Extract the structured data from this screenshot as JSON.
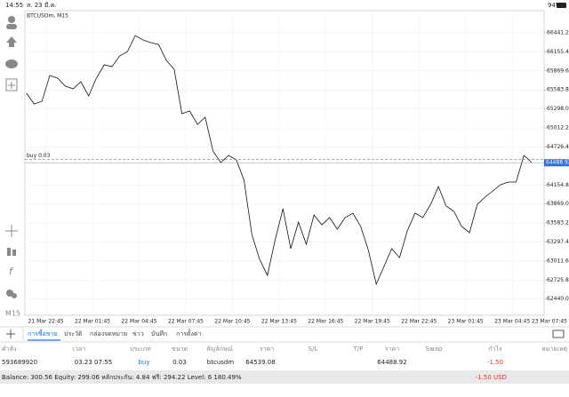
{
  "status_bar": {
    "time": "14:55",
    "date": "ส. 23 มี.ค.",
    "battery": "94%"
  },
  "chart": {
    "type": "line",
    "symbol_label": "BTCUSDm, M15",
    "timeframe": "M15",
    "color": "#111111",
    "values": [
      65533,
      65373,
      65413,
      65800,
      65760,
      65640,
      65600,
      65707,
      65493,
      65760,
      65960,
      65934,
      66094,
      66161,
      66401,
      66334,
      66294,
      66267,
      66027,
      65894,
      65226,
      65266,
      65066,
      65173,
      64665,
      64492,
      64599,
      64532,
      64225,
      63411,
      63037,
      62796,
      63330,
      63798,
      63197,
      63597,
      63264,
      63704,
      63557,
      63664,
      63491,
      63664,
      63731,
      63531,
      63170,
      62663,
      62930,
      63197,
      63063,
      63464,
      63731,
      63664,
      63864,
      64131,
      63838,
      63758,
      63531,
      63437,
      63864,
      63971,
      64065,
      64158,
      64198,
      64198,
      64599,
      64492
    ],
    "xlim": [
      -0.2,
      66.6
    ],
    "xticks": [
      {
        "value": 2.5,
        "label": "21 Mar 22:45"
      },
      {
        "value": 8.5,
        "label": "22 Mar 01:45"
      },
      {
        "value": 14.5,
        "label": "22 Mar 04:45"
      },
      {
        "value": 20.5,
        "label": "22 Mar 07:45"
      },
      {
        "value": 26.5,
        "label": "22 Mar 10:45"
      },
      {
        "value": 32.5,
        "label": "22 Mar 13:45"
      },
      {
        "value": 38.5,
        "label": "22 Mar 16:45"
      },
      {
        "value": 44.5,
        "label": "22 Mar 19:45"
      },
      {
        "value": 50.5,
        "label": "22 Mar 22:45"
      },
      {
        "value": 56.5,
        "label": "23 Mar 01:45"
      },
      {
        "value": 62.5,
        "label": "23 Mar 04:45"
      },
      {
        "value": 68.5,
        "label": "23 Mar 07:45"
      }
    ],
    "ylim": [
      62196,
      66775
    ],
    "yticks": [
      {
        "value": 66441.2,
        "label": "66441.20"
      },
      {
        "value": 66155.4,
        "label": "66155.40"
      },
      {
        "value": 65869.6,
        "label": "65869.60"
      },
      {
        "value": 65583.8,
        "label": "65583.80"
      },
      {
        "value": 65298,
        "label": "65298.00"
      },
      {
        "value": 65012.2,
        "label": "65012.20"
      },
      {
        "value": 64726.4,
        "label": "64726.40"
      },
      {
        "value": 64154.8,
        "label": "64154.80"
      },
      {
        "value": 63869,
        "label": "63869.00"
      },
      {
        "value": 63583.2,
        "label": "63583.20"
      },
      {
        "value": 63297.4,
        "label": "63297.40"
      },
      {
        "value": 63011.6,
        "label": "63011.60"
      },
      {
        "value": 62725.8,
        "label": "62725.80"
      },
      {
        "value": 62440,
        "label": "62440.00"
      }
    ],
    "position_label": "buy 0.03"
  },
  "tabs": [
    "การซื้อขาย",
    "ประวัติ",
    "กล่องจดหมาย",
    "ข่าว",
    "บันทึก",
    "การตั้งค่า"
  ],
  "table": {
    "headers": [
      "คำสั่ง",
      "เวลา",
      "ประเภท",
      "ขนาด",
      "สัญลักษณ์",
      "ราคา",
      "S/L",
      "T/P",
      "ราคา",
      "Swap",
      "กำไร",
      "หมายเหตุ"
    ],
    "rows": [
      {
        "order": "593689920",
        "time": "03.23 07:55",
        "type": "buy",
        "volume": "0.03",
        "symbol": "btcusdm",
        "price_open": 64539.08,
        "price_current": 64488.92,
        "profit": "-1.50"
      }
    ]
  },
  "footer": {
    "account": "Balance: 300.56 Equity: 299.06 หลักประกัน: 4.84 ฟรี: 294.22 Level: 6 180.49%",
    "total": "-1.50 USD"
  }
}
